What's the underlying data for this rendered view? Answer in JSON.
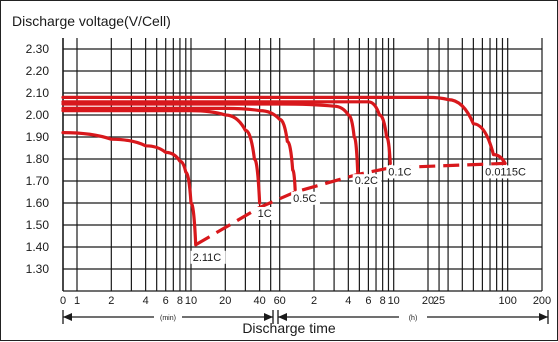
{
  "chart_data": {
    "type": "line",
    "title": "",
    "ylabel": "Discharge voltage(V/Cell)",
    "xlabel": "Discharge time",
    "ylim": [
      1.2,
      2.4
    ],
    "y_ticks": [
      2.3,
      2.2,
      2.1,
      2.0,
      1.9,
      1.8,
      1.7,
      1.6,
      1.5,
      1.4,
      1.3
    ],
    "x_scale": "log",
    "x_ticks_min": [
      "0",
      "1",
      "2",
      "4",
      "6",
      "8",
      "10",
      "20",
      "40",
      "60"
    ],
    "x_ticks_h": [
      "2",
      "4",
      "6",
      "8",
      "10",
      "20",
      "25",
      "100",
      "200"
    ],
    "x_unit_min": "(min)",
    "x_unit_h": "(h)",
    "grid": true,
    "series": [
      {
        "name": "2.11C",
        "points": [
          [
            0,
            1.92
          ],
          [
            2,
            1.89
          ],
          [
            4,
            1.86
          ],
          [
            6,
            1.83
          ],
          [
            8,
            1.79
          ],
          [
            9,
            1.74
          ],
          [
            10,
            1.6
          ],
          [
            11,
            1.41
          ]
        ]
      },
      {
        "name": "1C",
        "points": [
          [
            0,
            2.02
          ],
          [
            10,
            2.02
          ],
          [
            20,
            2.0
          ],
          [
            30,
            1.93
          ],
          [
            36,
            1.8
          ],
          [
            40,
            1.6
          ]
        ]
      },
      {
        "name": "0.5C",
        "points": [
          [
            0,
            2.03
          ],
          [
            20,
            2.03
          ],
          [
            40,
            2.02
          ],
          [
            60,
            1.98
          ],
          [
            70,
            1.88
          ],
          [
            78,
            1.75
          ],
          [
            82,
            1.66
          ]
        ]
      },
      {
        "name": "0.2C",
        "points": [
          [
            0,
            2.05
          ],
          [
            60,
            2.05
          ],
          [
            180,
            2.04
          ],
          [
            240,
            2.0
          ],
          [
            270,
            1.9
          ],
          [
            290,
            1.74
          ]
        ]
      },
      {
        "name": "0.1C",
        "points": [
          [
            0,
            2.06
          ],
          [
            60,
            2.06
          ],
          [
            360,
            2.06
          ],
          [
            450,
            2.0
          ],
          [
            520,
            1.9
          ],
          [
            560,
            1.78
          ]
        ]
      },
      {
        "name": "0.0115C",
        "points": [
          [
            0,
            2.08
          ],
          [
            60,
            2.08
          ],
          [
            1200,
            2.08
          ],
          [
            1800,
            2.07
          ],
          [
            3000,
            1.96
          ],
          [
            4500,
            1.82
          ],
          [
            5700,
            1.78
          ]
        ]
      }
    ],
    "endpoint_line": {
      "style": "dashed",
      "points": [
        [
          11,
          1.41
        ],
        [
          40,
          1.58
        ],
        [
          82,
          1.65
        ],
        [
          290,
          1.73
        ],
        [
          560,
          1.76
        ],
        [
          5700,
          1.78
        ]
      ]
    }
  }
}
